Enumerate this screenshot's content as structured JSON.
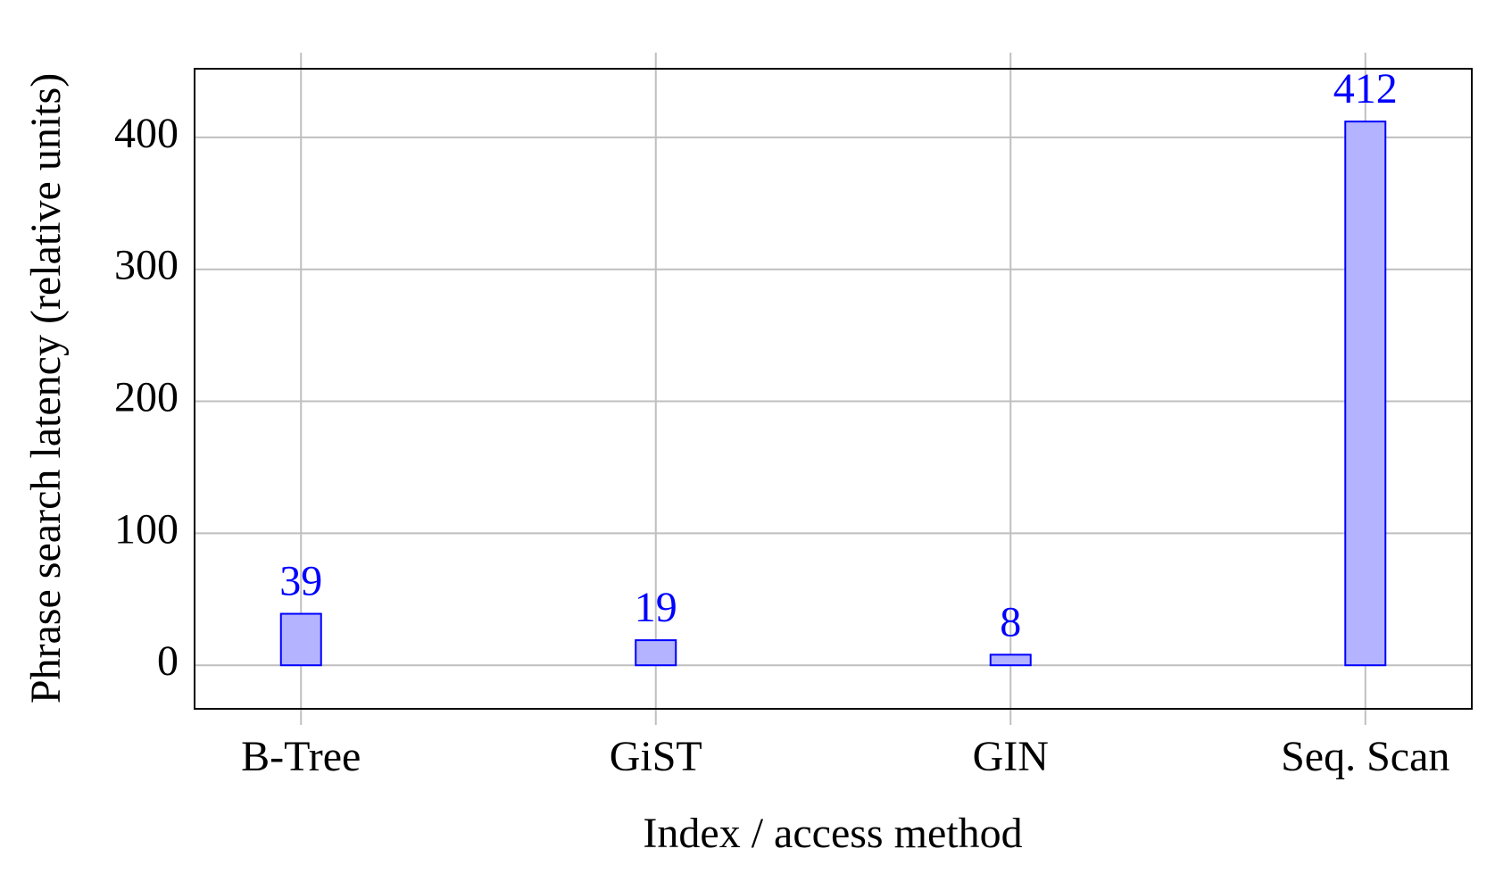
{
  "chart_data": {
    "type": "bar",
    "x_label": "Index / access method",
    "y_label": "Phrase search latency (relative units)",
    "categories": [
      "B-Tree",
      "GiST",
      "GIN",
      "Seq. Scan"
    ],
    "values": [
      39,
      19,
      8,
      412
    ],
    "color": "#b3b3ff",
    "edge_color": "#0000ff",
    "label_color": "#0000ff",
    "ylim": [
      -33,
      452
    ],
    "yticks": [
      0,
      100,
      200,
      300,
      400
    ],
    "grid": true
  }
}
